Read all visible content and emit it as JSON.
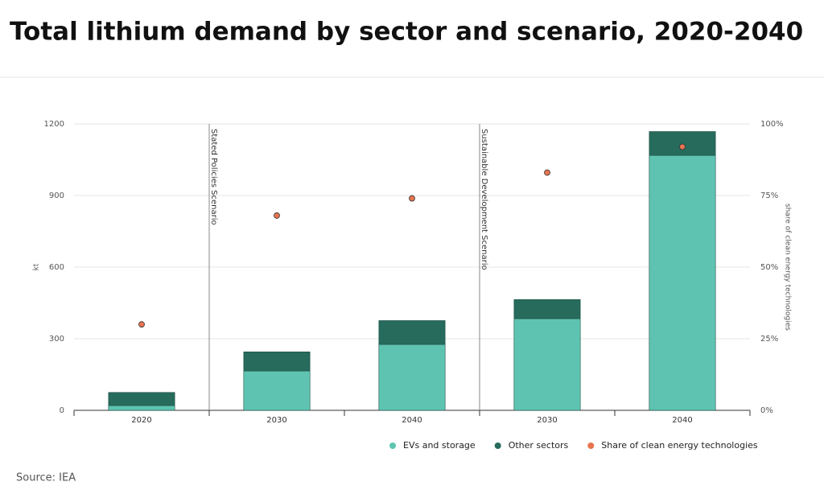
{
  "chart_data": {
    "type": "bar",
    "title": "Total lithium demand by sector and scenario, 2020-2040",
    "categories": [
      "2020",
      "2030",
      "2040",
      "2030",
      "2040"
    ],
    "annotations": [
      "Stated Policies Scenario",
      "Sustainable Development Scenario"
    ],
    "stacked": true,
    "series": [
      {
        "name": "EVs and storage",
        "color": "#5ec4b1",
        "values": [
          20,
          165,
          276,
          384,
          1068
        ]
      },
      {
        "name": "Other sectors",
        "color": "#266b5c",
        "values": [
          55,
          80,
          100,
          80,
          100
        ]
      },
      {
        "name": "Share of clean energy technologies",
        "color": "#e8744f",
        "axis": "y2",
        "values": [
          30,
          68,
          74,
          83,
          92
        ]
      }
    ],
    "ylabel": "kt",
    "y2label": "share of clean energy technologies",
    "ylim": [
      0,
      1200
    ],
    "yticks": [
      0,
      300,
      600,
      900,
      1200
    ],
    "y2lim": [
      0,
      100
    ],
    "y2ticks": [
      {
        "value": 0,
        "label": "0%"
      },
      {
        "value": 25,
        "label": "25%"
      },
      {
        "value": 50,
        "label": "50%"
      },
      {
        "value": 75,
        "label": "75%"
      },
      {
        "value": 100,
        "label": "100%"
      }
    ],
    "grid": true,
    "source": "Source: IEA"
  }
}
